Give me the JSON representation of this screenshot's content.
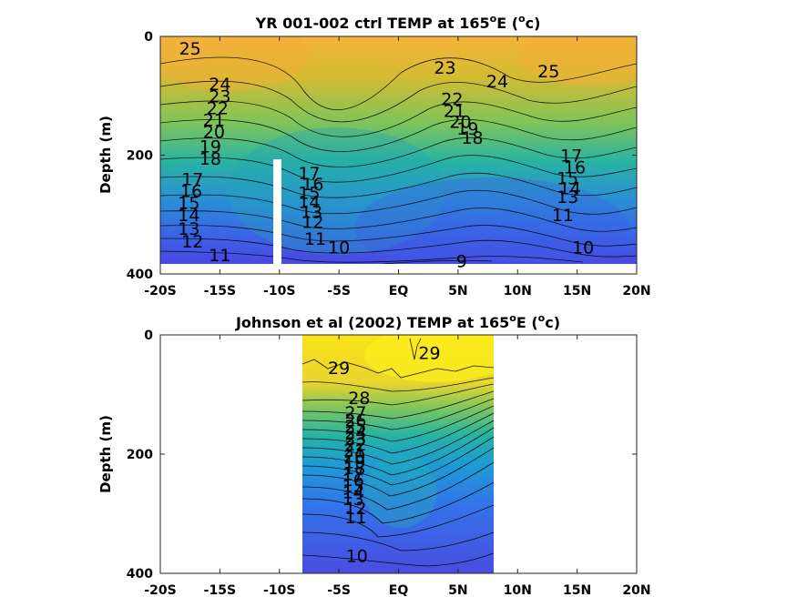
{
  "chart_data": [
    {
      "type": "contour",
      "title_main": "YR 001-002 ctrl TEMP at 165",
      "title_sup": "o",
      "title_tail": "E (",
      "title_unit_sup": "o",
      "title_unit_tail": "c)",
      "ylabel": "Depth (m)",
      "xlim": [
        -20,
        20
      ],
      "ylim": [
        0,
        400
      ],
      "y_reversed": true,
      "x_ticks": [
        -20,
        -15,
        -10,
        -5,
        0,
        5,
        10,
        15,
        20
      ],
      "x_tick_labels": [
        "-20S",
        "-15S",
        "-10S",
        "-5S",
        "EQ",
        "5N",
        "10N",
        "15N",
        "20N"
      ],
      "y_ticks": [
        0,
        200,
        400
      ],
      "y_tick_labels": [
        "0",
        "200",
        "400"
      ],
      "data_extent": {
        "x": [
          -20,
          20
        ],
        "depth": [
          0,
          380
        ]
      },
      "gap_x": [
        -10.5,
        -10.0
      ],
      "contour_labels": [
        {
          "text": "25",
          "x": -17.5,
          "y": 20
        },
        {
          "text": "24",
          "x": -15.0,
          "y": 80
        },
        {
          "text": "23",
          "x": -15.0,
          "y": 100
        },
        {
          "text": "22",
          "x": -15.2,
          "y": 120
        },
        {
          "text": "21",
          "x": -15.5,
          "y": 140
        },
        {
          "text": "20",
          "x": -15.5,
          "y": 160
        },
        {
          "text": "19",
          "x": -15.8,
          "y": 185
        },
        {
          "text": "18",
          "x": -15.8,
          "y": 205
        },
        {
          "text": "17",
          "x": -17.3,
          "y": 240
        },
        {
          "text": "16",
          "x": -17.4,
          "y": 260
        },
        {
          "text": "15",
          "x": -17.6,
          "y": 280
        },
        {
          "text": "14",
          "x": -17.6,
          "y": 300
        },
        {
          "text": "13",
          "x": -17.6,
          "y": 323
        },
        {
          "text": "12",
          "x": -17.3,
          "y": 345
        },
        {
          "text": "11",
          "x": -15.0,
          "y": 368
        },
        {
          "text": "17",
          "x": -7.5,
          "y": 230
        },
        {
          "text": "16",
          "x": -7.2,
          "y": 248
        },
        {
          "text": "15",
          "x": -7.5,
          "y": 263
        },
        {
          "text": "14",
          "x": -7.5,
          "y": 278
        },
        {
          "text": "13",
          "x": -7.3,
          "y": 295
        },
        {
          "text": "12",
          "x": -7.2,
          "y": 312
        },
        {
          "text": "11",
          "x": -7.0,
          "y": 340
        },
        {
          "text": "10",
          "x": -5.0,
          "y": 355
        },
        {
          "text": "9",
          "x": 5.3,
          "y": 378
        },
        {
          "text": "23",
          "x": 3.9,
          "y": 52
        },
        {
          "text": "24",
          "x": 8.3,
          "y": 75
        },
        {
          "text": "25",
          "x": 12.6,
          "y": 58
        },
        {
          "text": "22",
          "x": 4.5,
          "y": 105
        },
        {
          "text": "21",
          "x": 4.7,
          "y": 125
        },
        {
          "text": "20",
          "x": 5.2,
          "y": 143
        },
        {
          "text": "19",
          "x": 5.8,
          "y": 155
        },
        {
          "text": "18",
          "x": 6.2,
          "y": 170
        },
        {
          "text": "17",
          "x": 14.5,
          "y": 200
        },
        {
          "text": "16",
          "x": 14.8,
          "y": 220
        },
        {
          "text": "15",
          "x": 14.2,
          "y": 238
        },
        {
          "text": "14",
          "x": 14.4,
          "y": 255
        },
        {
          "text": "13",
          "x": 14.2,
          "y": 270
        },
        {
          "text": "11",
          "x": 13.8,
          "y": 300
        },
        {
          "text": "10",
          "x": 15.5,
          "y": 355
        }
      ]
    },
    {
      "type": "contour",
      "title_main": "Johnson et al (2002) TEMP at 165",
      "title_sup": "o",
      "title_tail": "E (",
      "title_unit_sup": "o",
      "title_unit_tail": "c)",
      "ylabel": "Depth (m)",
      "xlim": [
        -20,
        20
      ],
      "ylim": [
        0,
        400
      ],
      "y_reversed": true,
      "x_ticks": [
        -20,
        -15,
        -10,
        -5,
        0,
        5,
        10,
        15,
        20
      ],
      "x_tick_labels": [
        "-20S",
        "-15S",
        "-10S",
        "-5S",
        "EQ",
        "5N",
        "10N",
        "15N",
        "20N"
      ],
      "y_ticks": [
        0,
        200,
        400
      ],
      "y_tick_labels": [
        "0",
        "200",
        "400"
      ],
      "data_extent": {
        "x": [
          -8,
          8
        ],
        "depth": [
          0,
          400
        ]
      },
      "contour_labels": [
        {
          "text": "29",
          "x": 2.6,
          "y": 30
        },
        {
          "text": "29",
          "x": -5.0,
          "y": 55
        },
        {
          "text": "28",
          "x": -3.3,
          "y": 105
        },
        {
          "text": "27",
          "x": -3.6,
          "y": 130
        },
        {
          "text": "26",
          "x": -3.6,
          "y": 143
        },
        {
          "text": "25",
          "x": -3.6,
          "y": 153
        },
        {
          "text": "24",
          "x": -3.6,
          "y": 163
        },
        {
          "text": "23",
          "x": -3.6,
          "y": 173
        },
        {
          "text": "22",
          "x": -3.6,
          "y": 183
        },
        {
          "text": "21",
          "x": -3.7,
          "y": 193
        },
        {
          "text": "20",
          "x": -3.7,
          "y": 203
        },
        {
          "text": "19",
          "x": -3.7,
          "y": 213
        },
        {
          "text": "18",
          "x": -3.7,
          "y": 223
        },
        {
          "text": "17",
          "x": -3.8,
          "y": 233
        },
        {
          "text": "16",
          "x": -3.8,
          "y": 243
        },
        {
          "text": "15",
          "x": -3.8,
          "y": 253
        },
        {
          "text": "14",
          "x": -3.8,
          "y": 263
        },
        {
          "text": "13",
          "x": -3.8,
          "y": 275
        },
        {
          "text": "12",
          "x": -3.6,
          "y": 290
        },
        {
          "text": "11",
          "x": -3.6,
          "y": 305
        },
        {
          "text": "10",
          "x": -3.5,
          "y": 370
        }
      ]
    }
  ]
}
